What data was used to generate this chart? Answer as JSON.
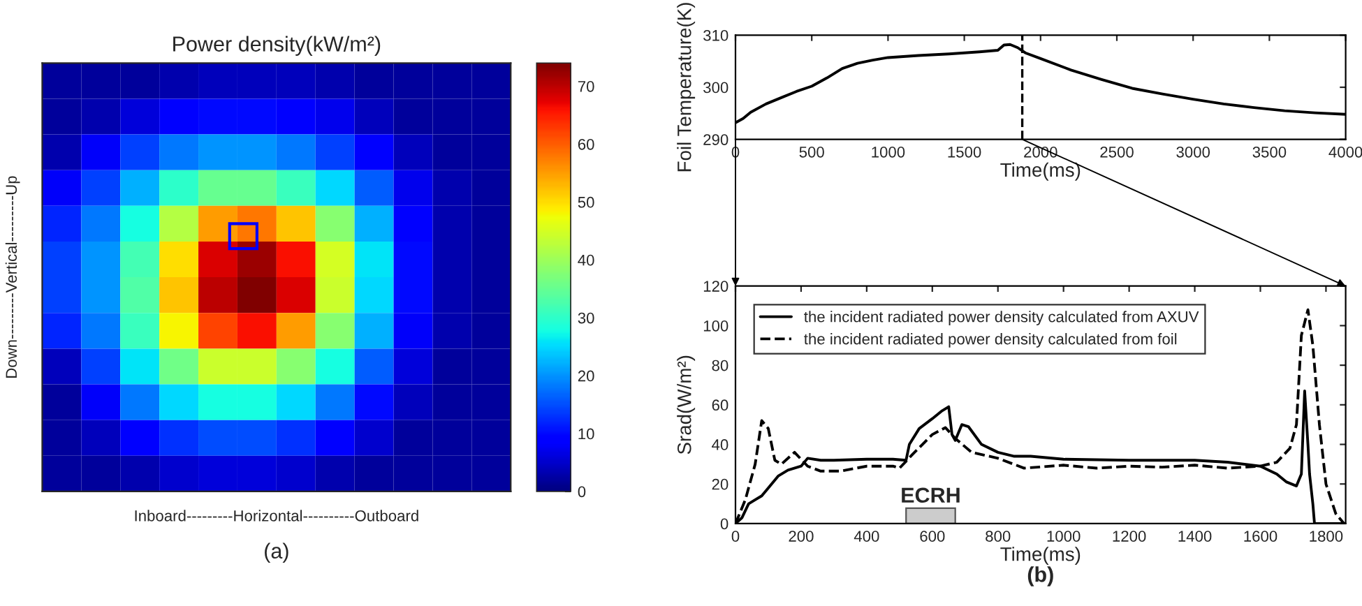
{
  "chart_data": [
    {
      "type": "heatmap",
      "title": "Power density(kW/m²)",
      "xlabel": "Inboard---------Horizontal----------Outboard",
      "ylabel": "Down---------Vertical---------Up",
      "annotations": [
        "(a)"
      ],
      "categories": [
        null,
        null,
        null,
        null,
        null,
        null,
        null,
        null,
        null,
        null,
        null,
        null
      ],
      "y_categories": [
        null,
        null,
        null,
        null,
        null,
        null,
        null,
        null,
        null,
        null,
        null,
        null
      ],
      "cells": [
        [
          2,
          2,
          2,
          3,
          4,
          4,
          4,
          3,
          2,
          2,
          2,
          2
        ],
        [
          2,
          3,
          6,
          9,
          10,
          10,
          9,
          7,
          4,
          2,
          2,
          2
        ],
        [
          3,
          8,
          14,
          18,
          20,
          20,
          18,
          14,
          9,
          4,
          2,
          2
        ],
        [
          8,
          14,
          22,
          30,
          35,
          35,
          31,
          25,
          16,
          7,
          3,
          2
        ],
        [
          12,
          18,
          28,
          42,
          55,
          58,
          52,
          38,
          22,
          9,
          3,
          2
        ],
        [
          14,
          20,
          32,
          50,
          68,
          72,
          66,
          45,
          26,
          10,
          3,
          2
        ],
        [
          14,
          20,
          33,
          52,
          70,
          74,
          68,
          44,
          25,
          10,
          3,
          2
        ],
        [
          12,
          18,
          31,
          48,
          62,
          66,
          55,
          38,
          22,
          8,
          3,
          2
        ],
        [
          4,
          14,
          26,
          36,
          44,
          44,
          38,
          28,
          16,
          6,
          2,
          2
        ],
        [
          2,
          8,
          18,
          25,
          28,
          28,
          25,
          18,
          10,
          4,
          2,
          2
        ],
        [
          2,
          4,
          9,
          13,
          15,
          15,
          13,
          9,
          5,
          2,
          2,
          2
        ],
        [
          2,
          2,
          3,
          5,
          6,
          6,
          5,
          3,
          2,
          2,
          2,
          2
        ]
      ],
      "clim": [
        0,
        74
      ],
      "cticks": [
        0,
        10,
        20,
        30,
        40,
        50,
        60,
        70
      ]
    },
    {
      "type": "line",
      "xlabel": "Time(ms)",
      "ylabel": "Foil Temperature(K)",
      "xlim": [
        0,
        4000
      ],
      "ylim": [
        290,
        310
      ],
      "xticks": [
        0,
        500,
        1000,
        1500,
        2000,
        2500,
        3000,
        3500,
        4000
      ],
      "yticks": [
        290,
        300,
        310
      ],
      "grid": false,
      "legend": false,
      "ref_lines": [
        {
          "axis": "x",
          "value": 1880,
          "line_style": "dashed",
          "color": "#000000"
        }
      ],
      "series": [
        {
          "color": "#000000",
          "line_style": "solid",
          "x": [
            0,
            50,
            100,
            200,
            300,
            400,
            500,
            600,
            700,
            800,
            900,
            1000,
            1200,
            1400,
            1600,
            1720,
            1760,
            1800,
            1850,
            1900,
            2000,
            2200,
            2400,
            2600,
            2800,
            3000,
            3200,
            3400,
            3600,
            3800,
            4000
          ],
          "values": [
            293.2,
            294,
            295.2,
            296.8,
            298,
            299.2,
            300.2,
            301.8,
            303.6,
            304.6,
            305.2,
            305.7,
            306.1,
            306.4,
            306.8,
            307.1,
            308.1,
            308.2,
            307.6,
            306.6,
            305.5,
            303.3,
            301.5,
            299.8,
            298.7,
            297.7,
            296.8,
            296.1,
            295.5,
            295.1,
            294.8
          ]
        }
      ]
    },
    {
      "type": "line",
      "xlabel": "Time(ms)",
      "ylabel": "Srad(W/m²)",
      "xlim": [
        0,
        1860
      ],
      "ylim": [
        0,
        120
      ],
      "xticks": [
        0,
        200,
        400,
        600,
        800,
        1000,
        1200,
        1400,
        1600,
        1800
      ],
      "yticks": [
        0,
        20,
        40,
        60,
        80,
        100,
        120
      ],
      "grid": false,
      "legend": "top left",
      "annotations": [
        "(b)"
      ],
      "bands": [
        {
          "axis": "x",
          "from": 520,
          "to": 670,
          "label": "ECRH",
          "color": "#cccccc"
        }
      ],
      "series": [
        {
          "name": "the incident radiated power density calculated from AXUV",
          "color": "#000000",
          "line_style": "solid",
          "x": [
            0,
            20,
            40,
            60,
            80,
            100,
            130,
            160,
            200,
            220,
            260,
            300,
            400,
            480,
            520,
            530,
            560,
            600,
            630,
            650,
            660,
            670,
            690,
            710,
            750,
            800,
            850,
            900,
            1000,
            1200,
            1400,
            1500,
            1600,
            1650,
            1680,
            1710,
            1725,
            1735,
            1745,
            1750,
            1760,
            1765,
            1860
          ],
          "values": [
            0,
            3,
            10,
            12,
            14,
            18,
            24,
            27,
            29,
            33,
            32,
            32,
            32.5,
            32.5,
            32,
            40,
            48,
            53,
            57,
            59,
            45,
            42,
            50,
            49,
            40,
            36,
            34,
            34,
            32.5,
            32,
            32,
            31,
            29,
            25,
            21,
            19,
            25,
            67,
            40,
            25,
            10,
            0,
            0
          ]
        },
        {
          "name": "the incident radiated power density calculated from foil",
          "color": "#000000",
          "line_style": "dashed",
          "x": [
            0,
            30,
            60,
            80,
            100,
            120,
            140,
            180,
            220,
            260,
            320,
            400,
            480,
            500,
            540,
            600,
            640,
            670,
            720,
            800,
            880,
            1000,
            1100,
            1200,
            1300,
            1400,
            1500,
            1600,
            1650,
            1690,
            1710,
            1725,
            1745,
            1760,
            1780,
            1800,
            1830,
            1855
          ],
          "values": [
            0,
            12,
            30,
            52,
            48,
            32,
            30,
            36,
            29,
            26.5,
            26.5,
            29,
            29,
            28,
            35,
            45,
            48.5,
            43,
            36,
            33,
            28,
            29.5,
            28,
            29,
            28.5,
            29.5,
            28,
            29,
            31,
            38,
            50,
            95,
            108,
            90,
            50,
            20,
            5,
            0
          ]
        }
      ]
    }
  ]
}
